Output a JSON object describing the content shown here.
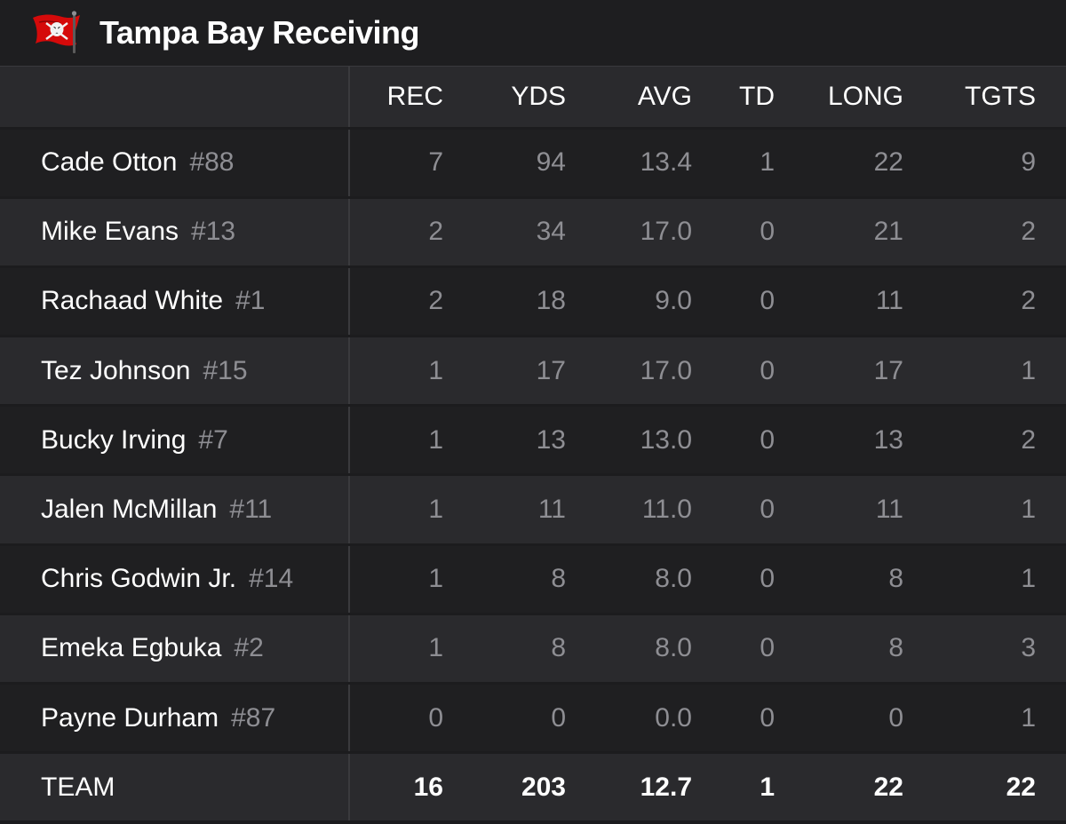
{
  "header": {
    "title": "Tampa Bay Receiving",
    "logo_icon": "buccaneers-flag-icon",
    "accent": "#d50a0a"
  },
  "columns": [
    "REC",
    "YDS",
    "AVG",
    "TD",
    "LONG",
    "TGTS"
  ],
  "players": [
    {
      "name": "Cade Otton",
      "number": "#88",
      "rec": "7",
      "yds": "94",
      "avg": "13.4",
      "td": "1",
      "long": "22",
      "tgts": "9"
    },
    {
      "name": "Mike Evans",
      "number": "#13",
      "rec": "2",
      "yds": "34",
      "avg": "17.0",
      "td": "0",
      "long": "21",
      "tgts": "2"
    },
    {
      "name": "Rachaad White",
      "number": "#1",
      "rec": "2",
      "yds": "18",
      "avg": "9.0",
      "td": "0",
      "long": "11",
      "tgts": "2"
    },
    {
      "name": "Tez Johnson",
      "number": "#15",
      "rec": "1",
      "yds": "17",
      "avg": "17.0",
      "td": "0",
      "long": "17",
      "tgts": "1"
    },
    {
      "name": "Bucky Irving",
      "number": "#7",
      "rec": "1",
      "yds": "13",
      "avg": "13.0",
      "td": "0",
      "long": "13",
      "tgts": "2"
    },
    {
      "name": "Jalen McMillan",
      "number": "#11",
      "rec": "1",
      "yds": "11",
      "avg": "11.0",
      "td": "0",
      "long": "11",
      "tgts": "1"
    },
    {
      "name": "Chris Godwin Jr.",
      "number": "#14",
      "rec": "1",
      "yds": "8",
      "avg": "8.0",
      "td": "0",
      "long": "8",
      "tgts": "1"
    },
    {
      "name": "Emeka Egbuka",
      "number": "#2",
      "rec": "1",
      "yds": "8",
      "avg": "8.0",
      "td": "0",
      "long": "8",
      "tgts": "3"
    },
    {
      "name": "Payne Durham",
      "number": "#87",
      "rec": "0",
      "yds": "0",
      "avg": "0.0",
      "td": "0",
      "long": "0",
      "tgts": "1"
    }
  ],
  "team": {
    "label": "TEAM",
    "rec": "16",
    "yds": "203",
    "avg": "12.7",
    "td": "1",
    "long": "22",
    "tgts": "22"
  }
}
